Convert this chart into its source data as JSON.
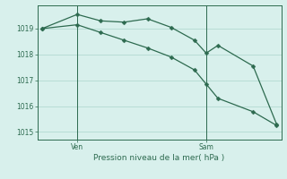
{
  "background_color": "#d8f0ec",
  "grid_color": "#b8ddd5",
  "line_color": "#2d6a4f",
  "ylabel": "Pression niveau de la mer( hPa )",
  "ylim": [
    1014.7,
    1019.9
  ],
  "yticks": [
    1015,
    1016,
    1017,
    1018,
    1019
  ],
  "xlim": [
    -0.2,
    10.2
  ],
  "x_ven": 1.5,
  "x_sam": 7.0,
  "line1_x": [
    0,
    1.5,
    2.5,
    3.5,
    4.5,
    5.5,
    6.5,
    7.0,
    7.5,
    9.0,
    10.0
  ],
  "line1_y": [
    1019.0,
    1019.55,
    1019.3,
    1019.25,
    1019.38,
    1019.05,
    1018.55,
    1018.05,
    1018.35,
    1017.55,
    1015.3
  ],
  "line2_x": [
    0,
    1.5,
    2.5,
    3.5,
    4.5,
    5.5,
    6.5,
    7.0,
    7.5,
    9.0,
    10.0
  ],
  "line2_y": [
    1019.0,
    1019.15,
    1018.85,
    1018.55,
    1018.25,
    1017.9,
    1017.4,
    1016.85,
    1016.3,
    1015.78,
    1015.25
  ],
  "marker_size": 2.5,
  "linewidth": 0.9,
  "tick_fontsize": 5.5,
  "xlabel_fontsize": 6.5
}
